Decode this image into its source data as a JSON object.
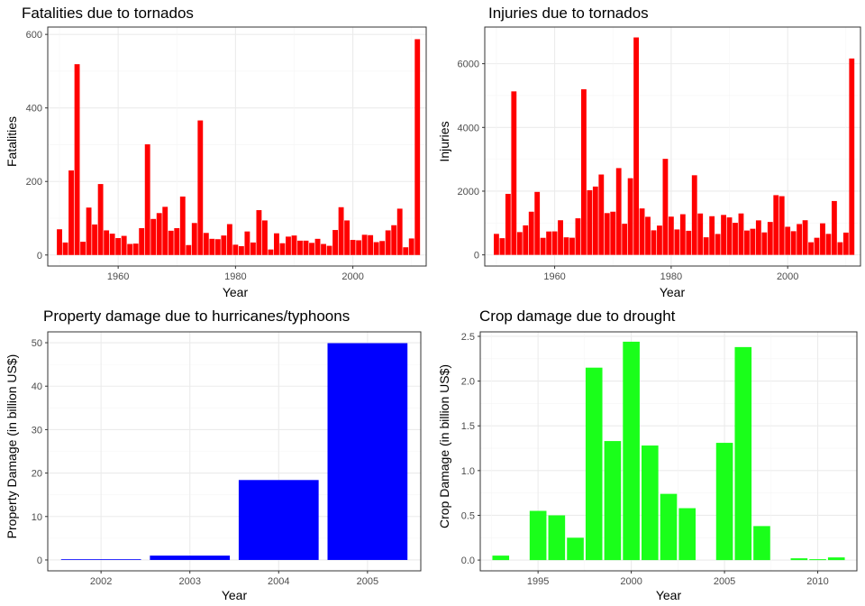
{
  "chart_data": [
    {
      "type": "bar",
      "title": "Fatalities due to tornados",
      "xlabel": "Year",
      "ylabel": "Fatalities",
      "color": "#ff0000",
      "xlim": [
        1948,
        2012.5
      ],
      "ylim": [
        -30,
        620
      ],
      "xticks": [
        1960,
        1980,
        2000
      ],
      "yticks": [
        0,
        200,
        400,
        600
      ],
      "x": [
        1950,
        1951,
        1952,
        1953,
        1954,
        1955,
        1956,
        1957,
        1958,
        1959,
        1960,
        1961,
        1962,
        1963,
        1964,
        1965,
        1966,
        1967,
        1968,
        1969,
        1970,
        1971,
        1972,
        1973,
        1974,
        1975,
        1976,
        1977,
        1978,
        1979,
        1980,
        1981,
        1982,
        1983,
        1984,
        1985,
        1986,
        1987,
        1988,
        1989,
        1990,
        1991,
        1992,
        1993,
        1994,
        1995,
        1996,
        1997,
        1998,
        1999,
        2000,
        2001,
        2002,
        2003,
        2004,
        2005,
        2006,
        2007,
        2008,
        2009,
        2010,
        2011
      ],
      "values": [
        70,
        34,
        230,
        519,
        36,
        129,
        83,
        193,
        67,
        58,
        46,
        52,
        30,
        31,
        73,
        301,
        98,
        114,
        131,
        66,
        73,
        159,
        27,
        87,
        366,
        60,
        44,
        43,
        53,
        84,
        28,
        24,
        64,
        34,
        122,
        94,
        15,
        59,
        32,
        50,
        53,
        39,
        39,
        33,
        44,
        30,
        25,
        68,
        130,
        94,
        41,
        40,
        55,
        54,
        35,
        38,
        67,
        81,
        126,
        21,
        45,
        587
      ]
    },
    {
      "type": "bar",
      "title": "Injuries due to tornados",
      "xlabel": "Year",
      "ylabel": "Injuries",
      "color": "#ff0000",
      "xlim": [
        1948,
        2012.5
      ],
      "ylim": [
        -350,
        7150
      ],
      "xticks": [
        1960,
        1980,
        2000
      ],
      "yticks": [
        0,
        2000,
        4000,
        6000
      ],
      "x": [
        1950,
        1951,
        1952,
        1953,
        1954,
        1955,
        1956,
        1957,
        1958,
        1959,
        1960,
        1961,
        1962,
        1963,
        1964,
        1965,
        1966,
        1967,
        1968,
        1969,
        1970,
        1971,
        1972,
        1973,
        1974,
        1975,
        1976,
        1977,
        1978,
        1979,
        1980,
        1981,
        1982,
        1983,
        1984,
        1985,
        1986,
        1987,
        1988,
        1989,
        1990,
        1991,
        1992,
        1993,
        1994,
        1995,
        1996,
        1997,
        1998,
        1999,
        2000,
        2001,
        2002,
        2003,
        2004,
        2005,
        2006,
        2007,
        2008,
        2009,
        2010,
        2011
      ],
      "values": [
        659,
        524,
        1915,
        5131,
        715,
        926,
        1355,
        1976,
        535,
        734,
        737,
        1087,
        551,
        538,
        1148,
        5197,
        2030,
        2144,
        2522,
        1311,
        1355,
        2723,
        976,
        2406,
        6824,
        1457,
        1195,
        771,
        919,
        3014,
        1200,
        798,
        1276,
        756,
        2499,
        1299,
        552,
        1213,
        656,
        1254,
        1176,
        1006,
        1300,
        764,
        820,
        1083,
        705,
        1033,
        1874,
        1842,
        882,
        743,
        968,
        1087,
        396,
        537,
        990,
        659,
        1690,
        397,
        699,
        6163
      ]
    },
    {
      "type": "bar",
      "title": "Property damage due to hurricanes/typhoons",
      "xlabel": "Year",
      "ylabel": "Property Damage (in billion US$)",
      "color": "#0000ff",
      "xlim": [
        0.4,
        4.6
      ],
      "ylim": [
        -2.5,
        52.5
      ],
      "categories": [
        "2002",
        "2003",
        "2004",
        "2005"
      ],
      "yticks": [
        0,
        10,
        20,
        30,
        40,
        50
      ],
      "values": [
        0.1,
        1.0,
        18.4,
        49.9
      ]
    },
    {
      "type": "bar",
      "title": "Crop damage due to drought",
      "xlabel": "Year",
      "ylabel": "Crop Damage (in billion US$)",
      "color": "#1aff1a",
      "xlim": [
        1991.9,
        2012.1
      ],
      "ylim": [
        -0.12,
        2.55
      ],
      "xticks": [
        1995,
        2000,
        2005,
        2010
      ],
      "yticks": [
        0.0,
        0.5,
        1.0,
        1.5,
        2.0,
        2.5
      ],
      "ytick_labels": [
        "0.0",
        "0.5",
        "1.0",
        "1.5",
        "2.0",
        "2.5"
      ],
      "x": [
        1993,
        1995,
        1996,
        1997,
        1998,
        1999,
        2000,
        2001,
        2002,
        2003,
        2005,
        2006,
        2007,
        2009,
        2010,
        2011
      ],
      "values": [
        0.05,
        0.55,
        0.5,
        0.25,
        2.15,
        1.33,
        2.44,
        1.28,
        0.74,
        0.58,
        1.31,
        2.38,
        0.38,
        0.02,
        0.01,
        0.03
      ]
    }
  ]
}
